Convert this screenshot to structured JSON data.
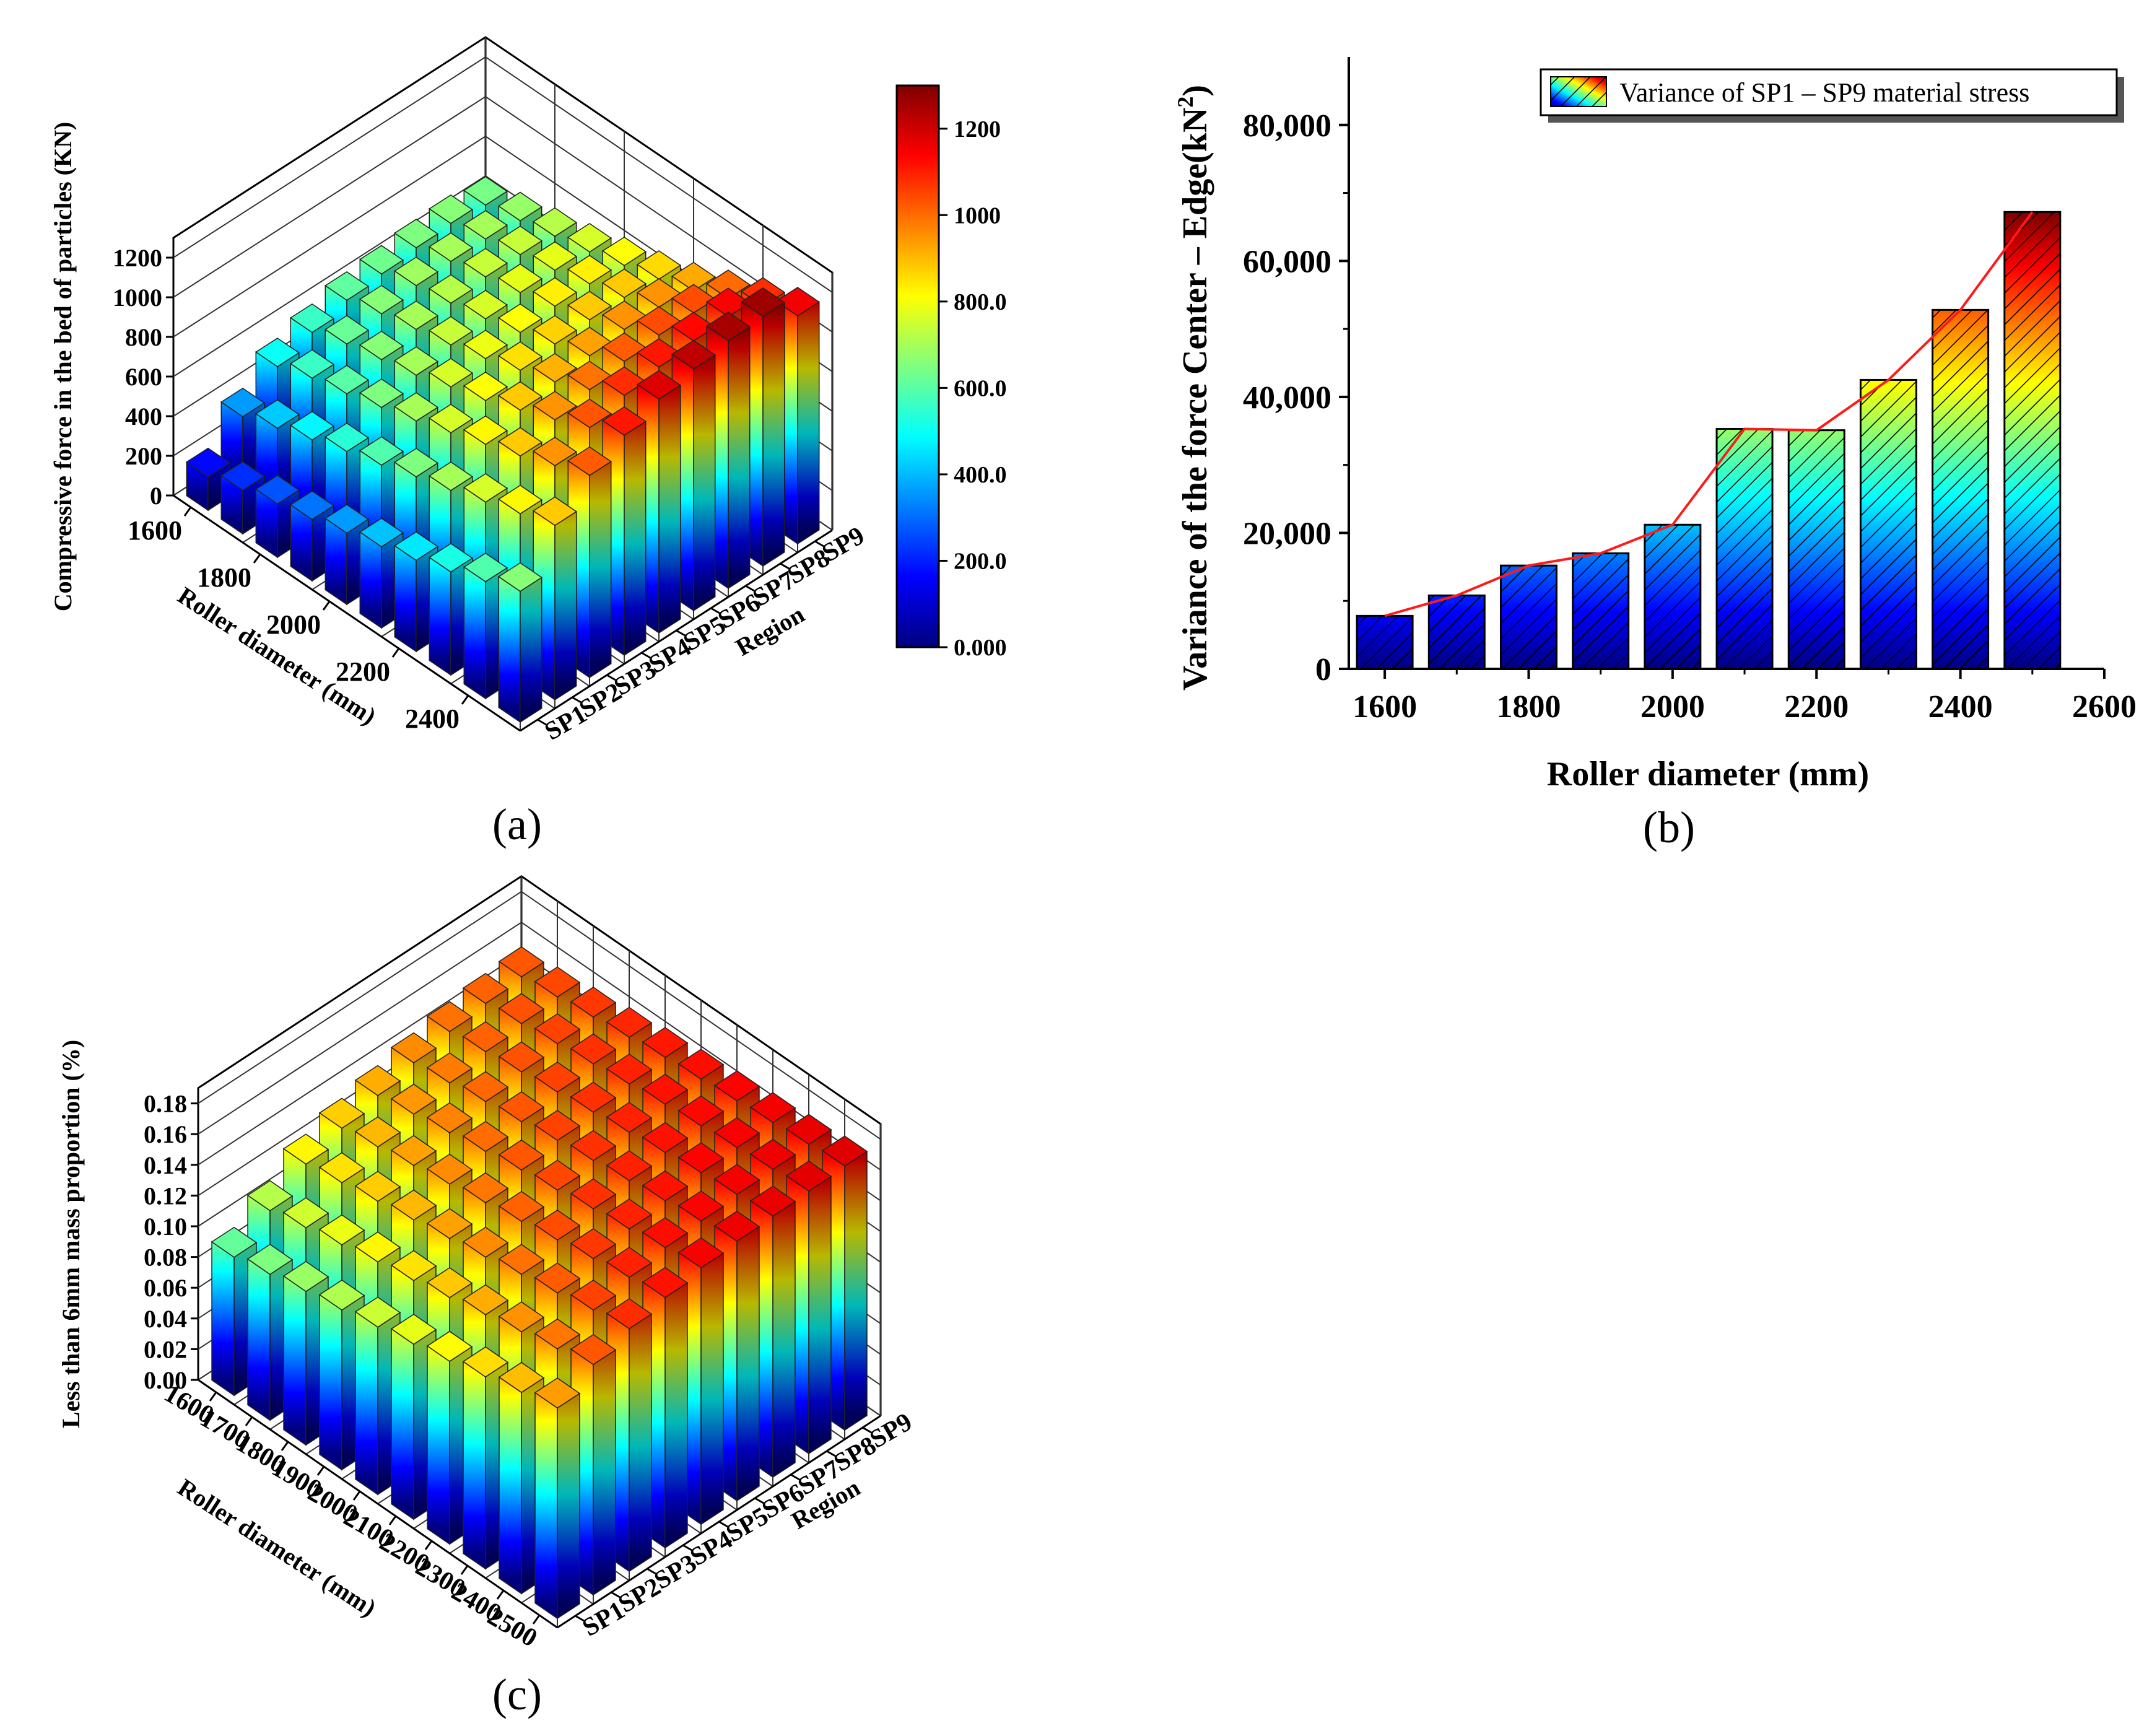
{
  "chart_data": [
    {
      "panel": "a",
      "type": "bar3d",
      "caption": "(a)",
      "zlabel": "Compressive force in the bed of particles (KN)",
      "xlabel": "Roller diameter (mm)",
      "ylabel": "Region",
      "z_ticks": [
        "0",
        "200",
        "400",
        "600",
        "800",
        "1000",
        "1200"
      ],
      "zlim": [
        0,
        1300
      ],
      "x_tick_labels": [
        "1600",
        "1800",
        "2000",
        "2200",
        "2400"
      ],
      "x_tick_values": [
        1600,
        1800,
        2000,
        2200,
        2400
      ],
      "diameters": [
        1600,
        1700,
        1800,
        1900,
        2000,
        2100,
        2200,
        2300,
        2400,
        2500
      ],
      "regions": [
        "SP1",
        "SP2",
        "SP3",
        "SP4",
        "SP5",
        "SP6",
        "SP7",
        "SP8",
        "SP9"
      ],
      "values": [
        [
          170,
          360,
          500,
          560,
          610,
          630,
          650,
          660,
          640
        ],
        [
          220,
          420,
          560,
          620,
          660,
          690,
          700,
          700,
          680
        ],
        [
          270,
          480,
          600,
          660,
          700,
          720,
          740,
          740,
          720
        ],
        [
          310,
          540,
          650,
          700,
          740,
          760,
          780,
          780,
          760
        ],
        [
          360,
          590,
          700,
          760,
          790,
          810,
          830,
          830,
          810
        ],
        [
          410,
          650,
          760,
          810,
          850,
          870,
          880,
          880,
          860
        ],
        [
          460,
          700,
          820,
          880,
          910,
          930,
          950,
          950,
          920
        ],
        [
          520,
          760,
          880,
          950,
          990,
          1020,
          1040,
          1040,
          1000
        ],
        [
          590,
          820,
          950,
          1030,
          1080,
          1110,
          1130,
          1140,
          1080
        ],
        [
          660,
          880,
          1020,
          1110,
          1180,
          1220,
          1250,
          1260,
          1150
        ]
      ],
      "colorbar": {
        "ticks": [
          "0.000",
          "200.0",
          "400.0",
          "600.0",
          "800.0",
          "1000",
          "1200"
        ],
        "min": 0,
        "max": 1300
      }
    },
    {
      "panel": "b",
      "type": "bar",
      "caption": "(b)",
      "ylabel": "Variance of the force Center – Edge(kN",
      "ylabel_sup": "2",
      "ylabel_end": ")",
      "xlabel": "Roller diameter (mm)",
      "legend": "Variance of SP1 – SP9 material stress",
      "x_ticks": [
        "1600",
        "1800",
        "2000",
        "2200",
        "2400",
        "2600"
      ],
      "x_tick_values": [
        1600,
        1800,
        2000,
        2200,
        2400,
        2600
      ],
      "y_ticks": [
        "0",
        "20,000",
        "40,000",
        "60,000",
        "80,000"
      ],
      "y_tick_values": [
        0,
        20000,
        40000,
        60000,
        80000
      ],
      "xlim": [
        1550,
        2600
      ],
      "ylim": [
        0,
        90000
      ],
      "x": [
        1600,
        1700,
        1800,
        1900,
        2000,
        2100,
        2200,
        2300,
        2400,
        2500
      ],
      "values": [
        7800,
        10800,
        15200,
        17000,
        21200,
        35300,
        35100,
        42500,
        52800,
        67200
      ]
    },
    {
      "panel": "c",
      "type": "bar3d",
      "caption": "(c)",
      "zlabel": "Less than 6mm mass proportion (%)",
      "xlabel": "Roller diameter (mm)",
      "ylabel": "Region",
      "z_ticks": [
        "0.00",
        "0.02",
        "0.04",
        "0.06",
        "0.08",
        "0.10",
        "0.12",
        "0.14",
        "0.16",
        "0.18"
      ],
      "zlim": [
        0,
        0.19
      ],
      "x_tick_labels": [
        "1600",
        "1700",
        "1800",
        "1900",
        "2000",
        "2100",
        "2200",
        "2300",
        "2400",
        "2500"
      ],
      "x_tick_values": [
        1600,
        1700,
        1800,
        1900,
        2000,
        2100,
        2200,
        2300,
        2400,
        2500
      ],
      "diameters": [
        1600,
        1700,
        1800,
        1900,
        2000,
        2100,
        2200,
        2300,
        2400,
        2500
      ],
      "regions": [
        "SP1",
        "SP2",
        "SP3",
        "SP4",
        "SP5",
        "SP6",
        "SP7",
        "SP8",
        "SP9"
      ],
      "values": [
        [
          0.09,
          0.105,
          0.12,
          0.128,
          0.134,
          0.14,
          0.145,
          0.148,
          0.15
        ],
        [
          0.095,
          0.11,
          0.124,
          0.132,
          0.138,
          0.143,
          0.148,
          0.151,
          0.153
        ],
        [
          0.1,
          0.115,
          0.128,
          0.136,
          0.142,
          0.147,
          0.151,
          0.154,
          0.156
        ],
        [
          0.104,
          0.12,
          0.132,
          0.14,
          0.146,
          0.15,
          0.154,
          0.157,
          0.159
        ],
        [
          0.109,
          0.124,
          0.136,
          0.144,
          0.15,
          0.154,
          0.157,
          0.16,
          0.162
        ],
        [
          0.114,
          0.129,
          0.14,
          0.148,
          0.153,
          0.157,
          0.16,
          0.163,
          0.164
        ],
        [
          0.119,
          0.134,
          0.145,
          0.152,
          0.157,
          0.16,
          0.163,
          0.165,
          0.166
        ],
        [
          0.125,
          0.139,
          0.149,
          0.156,
          0.16,
          0.163,
          0.166,
          0.167,
          0.168
        ],
        [
          0.131,
          0.144,
          0.154,
          0.16,
          0.164,
          0.166,
          0.168,
          0.169,
          0.17
        ],
        [
          0.137,
          0.15,
          0.158,
          0.163,
          0.167,
          0.169,
          0.17,
          0.171,
          0.172
        ]
      ],
      "colorbar": {
        "min": 0,
        "max": 0.19
      }
    }
  ]
}
